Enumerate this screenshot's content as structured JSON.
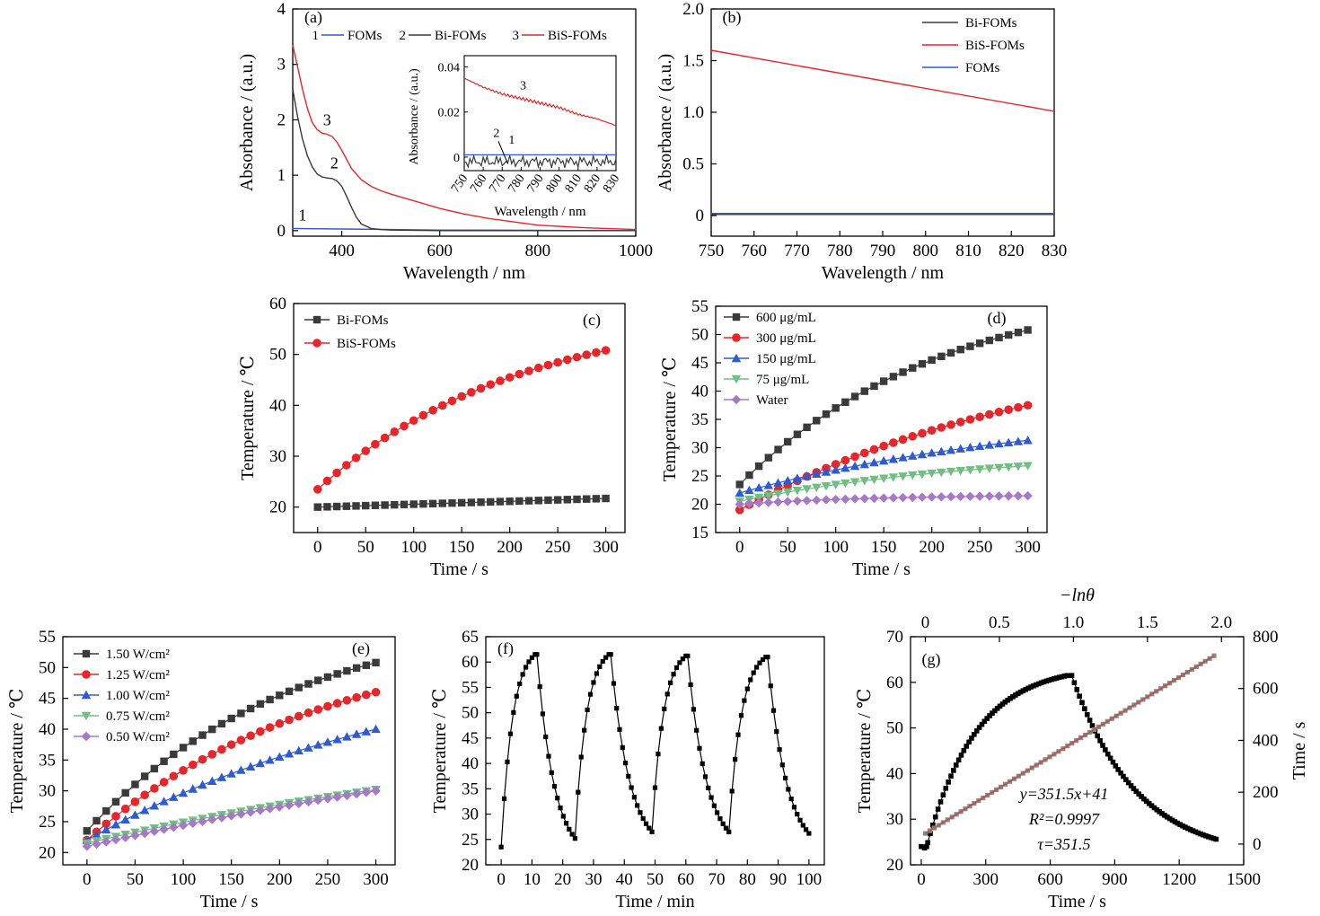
{
  "colors": {
    "black": "#000000",
    "gray": "#3a3a3a",
    "red": "#e8262a",
    "blue": "#2e5bd1",
    "green": "#6fbf82",
    "purple": "#a878c8",
    "fit": "#b05a50"
  },
  "chart_data": [
    {
      "id": "a",
      "label": "(a)",
      "type": "line",
      "xlabel": "Wavelength / nm",
      "ylabel": "Absorbance / (a.u.)",
      "xlim": [
        300,
        1000
      ],
      "ylim": [
        -0.1,
        4
      ],
      "xticks": [
        400,
        600,
        800,
        1000
      ],
      "yticks": [
        0,
        1,
        2,
        3,
        4
      ],
      "legend_position": "top",
      "series": [
        {
          "name": "FOMs",
          "number": "1",
          "color": "blue",
          "x": [
            300,
            400,
            500,
            600,
            700,
            800,
            900,
            1000
          ],
          "y": [
            0.04,
            0.03,
            0.02,
            0.01,
            0.01,
            0.005,
            0.0,
            0.0
          ]
        },
        {
          "name": "Bi-FOMs",
          "number": "2",
          "color": "gray",
          "x": [
            300,
            310,
            320,
            330,
            340,
            350,
            360,
            370,
            380,
            390,
            400,
            410,
            420,
            430,
            440,
            460,
            480,
            500,
            600,
            800,
            1000
          ],
          "y": [
            2.55,
            2.05,
            1.65,
            1.35,
            1.15,
            1.02,
            0.97,
            0.95,
            0.94,
            0.9,
            0.8,
            0.62,
            0.42,
            0.24,
            0.12,
            0.04,
            0.02,
            0.01,
            0.0,
            0.0,
            0.0
          ]
        },
        {
          "name": "BiS-FOMs",
          "number": "3",
          "color": "red",
          "x": [
            300,
            310,
            320,
            330,
            340,
            350,
            360,
            370,
            380,
            390,
            400,
            420,
            440,
            460,
            480,
            500,
            550,
            600,
            650,
            700,
            800,
            900,
            1000
          ],
          "y": [
            3.35,
            2.95,
            2.55,
            2.2,
            1.95,
            1.82,
            1.76,
            1.74,
            1.7,
            1.6,
            1.45,
            1.12,
            0.92,
            0.8,
            0.72,
            0.66,
            0.53,
            0.4,
            0.3,
            0.22,
            0.1,
            0.05,
            0.02
          ]
        }
      ],
      "annotations": [
        {
          "text": "1",
          "x": 320,
          "y": 0.18
        },
        {
          "text": "2",
          "x": 385,
          "y": 1.12
        },
        {
          "text": "3",
          "x": 370,
          "y": 1.9
        }
      ],
      "inset": {
        "xlabel": "Wavelength / nm",
        "ylabel": "Absorbance / (a.u.)",
        "xlim": [
          750,
          830
        ],
        "ylim": [
          -0.006,
          0.045
        ],
        "xticks": [
          750,
          760,
          770,
          780,
          790,
          800,
          810,
          820,
          830
        ],
        "yticks": [
          0,
          0.02,
          0.04
        ],
        "ytick_labels": [
          "0",
          "0.02",
          "0.04"
        ],
        "series": [
          {
            "number": "1",
            "color": "blue",
            "x": [
              750,
              830
            ],
            "y": [
              0.001,
              0.001
            ]
          },
          {
            "number": "2",
            "color": "gray",
            "x": [
              750,
              830
            ],
            "y": [
              -0.002,
              -0.002
            ]
          },
          {
            "number": "3",
            "color": "red",
            "x": [
              750,
              760,
              770,
              780,
              790,
              800,
              810,
              820,
              830
            ],
            "y": [
              0.035,
              0.031,
              0.028,
              0.026,
              0.024,
              0.022,
              0.019,
              0.017,
              0.014
            ]
          }
        ],
        "annotations": [
          {
            "text": "3",
            "x": 781,
            "y": 0.03
          },
          {
            "text": "2",
            "x": 767,
            "y": 0.009
          },
          {
            "text": "1",
            "x": 775,
            "y": 0.006
          }
        ]
      }
    },
    {
      "id": "b",
      "label": "(b)",
      "type": "line",
      "xlabel": "Wavelength / nm",
      "ylabel": "Absorbance / (a.u.)",
      "xlim": [
        750,
        830
      ],
      "ylim": [
        -0.2,
        2.0
      ],
      "xticks": [
        750,
        760,
        770,
        780,
        790,
        800,
        810,
        820,
        830
      ],
      "yticks": [
        0,
        0.5,
        1.0,
        1.5,
        2.0
      ],
      "ytick_labels": [
        "0",
        "0.5",
        "1.0",
        "1.5",
        "2.0"
      ],
      "legend_position": "top-right",
      "series": [
        {
          "name": "Bi-FOMs",
          "color": "gray",
          "x": [
            750,
            830
          ],
          "y": [
            0.01,
            0.01
          ]
        },
        {
          "name": "BiS-FOMs",
          "color": "red",
          "x": [
            750,
            830
          ],
          "y": [
            1.6,
            1.01
          ]
        },
        {
          "name": "FOMs",
          "color": "blue",
          "x": [
            750,
            830
          ],
          "y": [
            0.02,
            0.02
          ]
        }
      ]
    },
    {
      "id": "c",
      "label": "(c)",
      "type": "line",
      "xlabel": "Time / s",
      "ylabel": "Temperature / ℃",
      "xlim": [
        -25,
        320
      ],
      "ylim": [
        15,
        60
      ],
      "xticks": [
        0,
        50,
        100,
        150,
        200,
        250,
        300
      ],
      "yticks": [
        20,
        30,
        40,
        50,
        60
      ],
      "legend_position": "top-left",
      "series": [
        {
          "name": "Bi-FOMs",
          "color": "gray",
          "marker": "square",
          "start": 20.0,
          "end": 21.7,
          "k": 0
        },
        {
          "name": "BiS-FOMs",
          "color": "red",
          "marker": "circle",
          "start": 23.5,
          "end": 50.8,
          "k": 1.4
        }
      ]
    },
    {
      "id": "d",
      "label": "(d)",
      "type": "line",
      "xlabel": "Time / s",
      "ylabel": "Temperature / ℃",
      "xlim": [
        -25,
        320
      ],
      "ylim": [
        15,
        55
      ],
      "xticks": [
        0,
        50,
        100,
        150,
        200,
        250,
        300
      ],
      "yticks": [
        15,
        20,
        25,
        30,
        35,
        40,
        45,
        50,
        55
      ],
      "legend_position": "top-left",
      "series": [
        {
          "name": "600 μg/mL",
          "color": "gray",
          "marker": "square",
          "start": 23.5,
          "end": 50.8,
          "k": 1.4
        },
        {
          "name": "300 μg/mL",
          "color": "red",
          "marker": "circle",
          "start": 19.0,
          "end": 37.5,
          "k": 0.9
        },
        {
          "name": "150 μg/mL",
          "color": "blue",
          "marker": "triangle-up",
          "start": 22.0,
          "end": 31.3,
          "k": 0.9
        },
        {
          "name": "75 μg/mL",
          "color": "green",
          "marker": "triangle-down",
          "start": 20.5,
          "end": 26.8,
          "k": 1.2
        },
        {
          "name": "Water",
          "color": "purple",
          "marker": "diamond",
          "start": 20.0,
          "end": 21.5,
          "k": 2.0
        }
      ]
    },
    {
      "id": "e",
      "label": "(e)",
      "type": "line",
      "xlabel": "Time / s",
      "ylabel": "Temperature / ℃",
      "xlim": [
        -25,
        320
      ],
      "ylim": [
        18,
        55
      ],
      "xticks": [
        0,
        50,
        100,
        150,
        200,
        250,
        300
      ],
      "yticks": [
        20,
        25,
        30,
        35,
        40,
        45,
        50,
        55
      ],
      "legend_position": "top-left",
      "series": [
        {
          "name": "1.50 W/cm²",
          "color": "gray",
          "marker": "square",
          "start": 23.5,
          "end": 50.8,
          "k": 1.4
        },
        {
          "name": "1.25 W/cm²",
          "color": "red",
          "marker": "circle",
          "start": 22.0,
          "end": 46.0,
          "k": 1.2
        },
        {
          "name": "1.00 W/cm²",
          "color": "blue",
          "marker": "triangle-up",
          "start": 22.0,
          "end": 40.0,
          "k": 0.8
        },
        {
          "name": "0.75 W/cm²",
          "color": "green",
          "marker": "triangle-down",
          "start": 21.5,
          "end": 30.2,
          "k": 0.5
        },
        {
          "name": "0.50 W/cm²",
          "color": "purple",
          "marker": "diamond",
          "start": 21.0,
          "end": 30.0,
          "k": 0.4
        }
      ]
    },
    {
      "id": "f",
      "label": "(f)",
      "type": "line",
      "xlabel": "Time / min",
      "ylabel": "Temperature / ℃",
      "xlim": [
        -5,
        105
      ],
      "ylim": [
        20,
        65
      ],
      "xticks": [
        0,
        10,
        20,
        30,
        40,
        50,
        60,
        70,
        80,
        90,
        100
      ],
      "yticks": [
        20,
        25,
        30,
        35,
        40,
        45,
        50,
        55,
        60,
        65
      ],
      "cycles": [
        {
          "t0": 0,
          "peak": 11,
          "t1": 24,
          "min": 23.5,
          "max": 61.5,
          "end": 25.2
        },
        {
          "t0": 24,
          "peak": 35,
          "t1": 49,
          "min": 25.2,
          "max": 61.5,
          "end": 26.5
        },
        {
          "t0": 49,
          "peak": 60,
          "t1": 74,
          "min": 26.5,
          "max": 61.2,
          "end": 26.5
        },
        {
          "t0": 74,
          "peak": 86,
          "t1": 100,
          "min": 26.5,
          "max": 61.0,
          "end": 26.2
        }
      ]
    },
    {
      "id": "g",
      "label": "(g)",
      "type": "line",
      "xlabel": "Time / s",
      "ylabel": "Temperature / ℃",
      "top_xlabel": "−lnθ",
      "right_ylabel": "Time / s",
      "xlim": [
        -50,
        1500
      ],
      "ylim": [
        20,
        70
      ],
      "top_xlim": [
        -0.1,
        2.15
      ],
      "right_ylim": [
        -80,
        800
      ],
      "xticks": [
        0,
        300,
        600,
        900,
        1200,
        1500
      ],
      "yticks": [
        20,
        30,
        40,
        50,
        60,
        70
      ],
      "top_xticks": [
        0,
        0.5,
        1.0,
        1.5,
        2.0
      ],
      "top_xtick_labels": [
        "0",
        "0.5",
        "1.0",
        "1.5",
        "2.0"
      ],
      "right_yticks": [
        0,
        200,
        400,
        600,
        800
      ],
      "heating": {
        "t_start": 0,
        "t_peak": 680,
        "T0": 24.0,
        "Tmax": 61.5,
        "tau": 230
      },
      "cooling": {
        "t_start": 700,
        "t_end": 1380,
        "Tend": 25.5,
        "tau": 300
      },
      "linear": {
        "slope": 351.5,
        "intercept": 41,
        "x_start": 0.0,
        "x_end": 1.95
      },
      "annotations": [
        "y=351.5x+41",
        "R²=0.9997",
        "τ=351.5"
      ]
    }
  ]
}
